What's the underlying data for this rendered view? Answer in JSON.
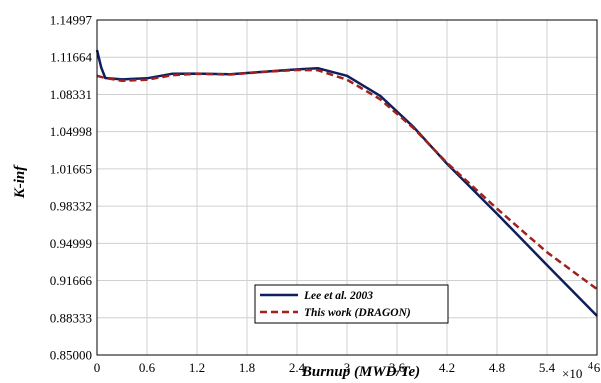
{
  "chart_data": {
    "type": "line",
    "title": "",
    "xlabel": "Burnup (MWD/Te)",
    "ylabel": "K-inf",
    "x_exponent_label": "×10",
    "x_exponent_power": "4",
    "x_scale": 10000,
    "xlim": [
      0,
      6
    ],
    "ylim": [
      0.85,
      1.14997
    ],
    "x_ticks": [
      "0",
      "0.6",
      "1.2",
      "1.8",
      "2.4",
      "3",
      "3.6",
      "4.2",
      "4.8",
      "5.4",
      "6"
    ],
    "x_tick_values": [
      0,
      0.6,
      1.2,
      1.8,
      2.4,
      3.0,
      3.6,
      4.2,
      4.8,
      5.4,
      6.0
    ],
    "y_ticks": [
      "0.85000",
      "0.88333",
      "0.91666",
      "0.94999",
      "0.98332",
      "1.01665",
      "1.04998",
      "1.08331",
      "1.11664",
      "1.14997"
    ],
    "y_tick_values": [
      0.85,
      0.88333,
      0.91666,
      0.94999,
      0.98332,
      1.01665,
      1.04998,
      1.08331,
      1.11664,
      1.14997
    ],
    "grid": true,
    "legend_position": "bottom-center",
    "series": [
      {
        "name": "Lee et al. 2003",
        "color": "#0d1f5c",
        "style": "solid",
        "x": [
          0,
          0.05,
          0.1,
          0.3,
          0.6,
          0.9,
          1.2,
          1.6,
          2.0,
          2.4,
          2.65,
          3.0,
          3.4,
          3.8,
          4.2,
          4.8,
          5.4,
          6.0
        ],
        "y": [
          1.123,
          1.1075,
          1.098,
          1.0968,
          1.0978,
          1.1018,
          1.102,
          1.1014,
          1.1036,
          1.1057,
          1.1068,
          1.1,
          1.082,
          1.054,
          1.0212,
          0.9765,
          0.9305,
          0.885
        ]
      },
      {
        "name": "This work (DRAGON)",
        "color": "#a0201c",
        "style": "dashed",
        "x": [
          0,
          0.05,
          0.1,
          0.3,
          0.6,
          0.9,
          1.2,
          1.6,
          2.0,
          2.4,
          2.65,
          3.0,
          3.4,
          3.8,
          4.2,
          4.8,
          5.4,
          6.0
        ],
        "y": [
          1.1,
          1.099,
          1.098,
          1.0955,
          1.0965,
          1.1005,
          1.1018,
          1.1012,
          1.1035,
          1.1052,
          1.105,
          1.0965,
          1.079,
          1.053,
          1.022,
          0.981,
          0.942,
          0.909
        ]
      }
    ]
  }
}
